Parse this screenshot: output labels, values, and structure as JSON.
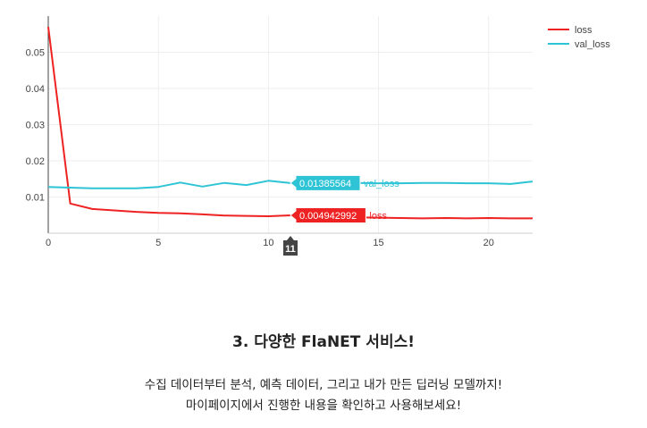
{
  "chart_data": {
    "type": "line",
    "x": [
      0,
      1,
      2,
      3,
      4,
      5,
      6,
      7,
      8,
      9,
      10,
      11,
      12,
      13,
      14,
      15,
      16,
      17,
      18,
      19,
      20,
      21,
      22
    ],
    "series": [
      {
        "name": "loss",
        "color": "#ee2222",
        "values": [
          0.057,
          0.0082,
          0.0067,
          0.0063,
          0.0059,
          0.0056,
          0.0055,
          0.0052,
          0.0049,
          0.0048,
          0.0047,
          0.004942992,
          0.0046,
          0.0045,
          0.0044,
          0.0043,
          0.0042,
          0.0041,
          0.0042,
          0.0041,
          0.0042,
          0.0041,
          0.0041
        ]
      },
      {
        "name": "val_loss",
        "color": "#2ec4d6",
        "values": [
          0.0128,
          0.0126,
          0.0124,
          0.0124,
          0.0124,
          0.0128,
          0.014,
          0.0129,
          0.0139,
          0.0133,
          0.0145,
          0.01385564,
          0.0137,
          0.0137,
          0.0139,
          0.0138,
          0.0138,
          0.0139,
          0.0139,
          0.0138,
          0.0138,
          0.0136,
          0.0143
        ]
      }
    ],
    "xlim": [
      0,
      22
    ],
    "ylim": [
      0,
      0.06
    ],
    "xticks": [
      0,
      5,
      10,
      15,
      20
    ],
    "yticks": [
      0.01,
      0.02,
      0.03,
      0.04,
      0.05
    ],
    "ytick_labels": [
      "0.01",
      "0.02",
      "0.03",
      "0.04",
      "0.05"
    ],
    "grid": true,
    "legend": "top-right",
    "hover": {
      "x": 11,
      "x_label": "11",
      "labels": [
        {
          "series": "val_loss",
          "value_text": "0.01385564",
          "name_text": "val_loss"
        },
        {
          "series": "loss",
          "value_text": "0.004942992",
          "name_text": "loss"
        }
      ]
    }
  },
  "section": {
    "title": "3. 다양한 FlaNET 서비스!",
    "line1": "수집 데이터부터 분석, 예측 데이터, 그리고 내가 만든 딥러닝 모델까지!",
    "line2": "마이페이지에서 진행한 내용을 확인하고 사용해보세요!"
  }
}
